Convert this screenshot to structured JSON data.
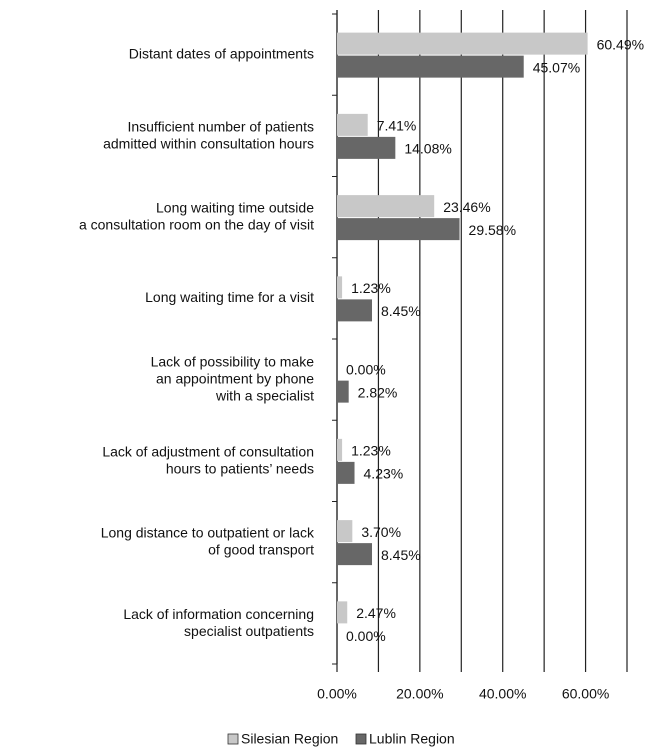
{
  "chart_data": {
    "type": "hbar",
    "categories": [
      "Distant dates of appointments",
      "Insufficient number of patients\nadmitted within consultation hours",
      "Long waiting time outside\na consultation room on the day of visit",
      "Long waiting time for a visit",
      "Lack of possibility to make\nan appointment by phone\nwith a specialist",
      "Lack of adjustment of consultation\nhours to patients’ needs",
      "Long distance to outpatient or lack\nof good transport",
      "Lack of information concerning\nspecialist outpatients"
    ],
    "series": [
      {
        "name": "Silesian Region",
        "color": "#c8c8c8",
        "values": [
          60.49,
          7.41,
          23.46,
          1.23,
          0,
          1.23,
          3.7,
          2.47
        ],
        "value_labels": [
          "60.49%",
          "7.41%",
          "23.46%",
          "1.23%",
          "0.00%",
          "1.23%",
          "3.70%",
          "2.47%"
        ]
      },
      {
        "name": "Lublin Region",
        "color": "#676767",
        "values": [
          45.07,
          14.08,
          29.58,
          8.45,
          2.82,
          4.23,
          8.45,
          0
        ],
        "value_labels": [
          "45.07%",
          "14.08%",
          "29.58%",
          "8.45%",
          "2.82%",
          "4.23%",
          "8.45%",
          "0.00%"
        ]
      }
    ],
    "xlim": [
      0,
      70
    ],
    "xticks": [
      {
        "value": 0,
        "label": "0.00%"
      },
      {
        "value": 20,
        "label": "20.00%"
      },
      {
        "value": 40,
        "label": "40.00%"
      },
      {
        "value": 60,
        "label": "60.00%"
      }
    ],
    "xgrid": [
      0,
      10,
      20,
      30,
      40,
      50,
      60,
      70
    ],
    "grid": true,
    "legend": "bottom"
  }
}
